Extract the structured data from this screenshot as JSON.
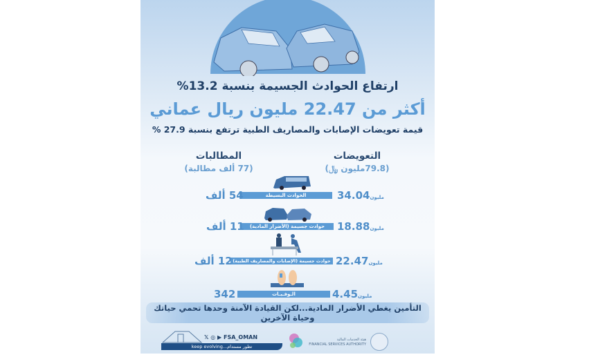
{
  "headline": "ارتفاع الحوادث الجسيمة بنسبة 13.2%",
  "highlight": "أكثر من 22.47 مليون ريال عماني",
  "subheadline": "قيمة تعويضات الإصابات والمصاريف الطبية ترتفع بنسبة 27.9 %",
  "columns": {
    "compensation": {
      "title": "التعويضات",
      "total": "(79.8مليون ﷼)"
    },
    "claims": {
      "title": "المطالبات",
      "total": "(77 ألف مطالبة)"
    }
  },
  "rows": [
    {
      "label": "الحوادث البسيطة",
      "compensation": "34.04",
      "unit": "مليون",
      "claims": "54 ألف",
      "icon": "minor-accident-icon"
    },
    {
      "label": "حوادث جسيمة (الأضرار المادية)",
      "compensation": "18.88",
      "unit": "مليون",
      "claims": "11 ألف",
      "icon": "car-collision-icon"
    },
    {
      "label": "حوادث جسيمة (الإصابات والمصاريف الطبية)",
      "compensation": "22.47",
      "unit": "مليون",
      "claims": "12 ألف",
      "icon": "medical-stretcher-icon"
    },
    {
      "label": "الـوفـيـات",
      "compensation": "4.45",
      "unit": "مليون",
      "claims": "342",
      "icon": "deceased-feet-icon"
    }
  ],
  "banner": "التأمين يغطي الأضرار المادية...لكن القيادة الآمنة وحدها تحمي حياتك وحياة الآخرين",
  "footer": {
    "social_handle": "FSA_OMAN",
    "slogan": "keep evolving...تطور مستدام",
    "authority_ar": "هيئة الخدمات المالية",
    "authority_en": "FINANCIAL SERVICES AUTHORITY",
    "seal_text": "هيئة الخدمات المالية"
  },
  "colors": {
    "navy": "#1f3f66",
    "accent": "#5b9bd5",
    "semicircle": "#6fa6d8"
  }
}
